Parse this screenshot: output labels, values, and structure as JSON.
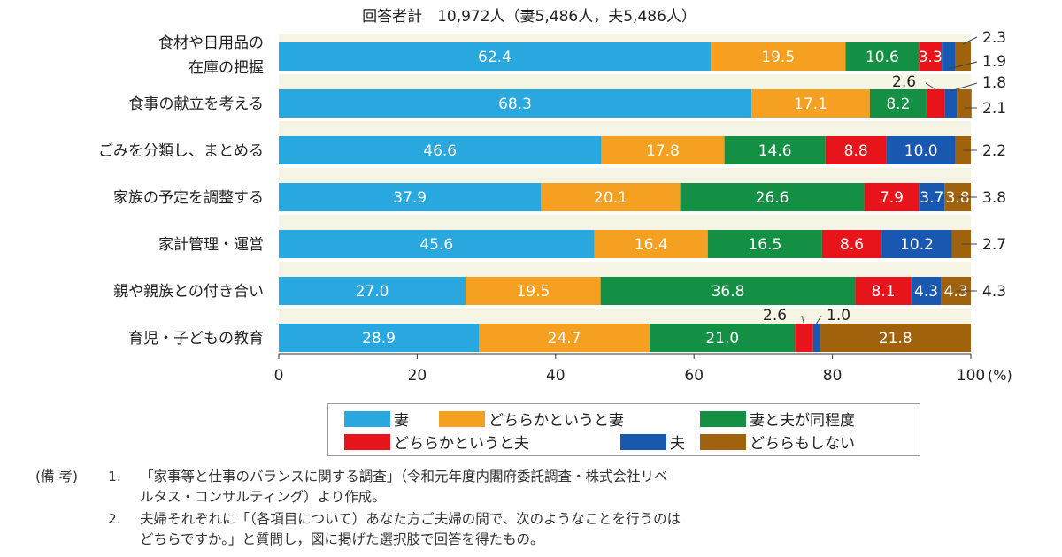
{
  "chart_data": {
    "type": "bar",
    "orientation": "horizontal",
    "stacked": true,
    "subtitle": "回答者計　10,972人（妻5,486人，夫5,486人）",
    "categories": [
      "食材や日用品の\n在庫の把握",
      "食事の献立を考える",
      "ごみを分類し、まとめる",
      "家族の予定を調整する",
      "家計管理・運営",
      "親や親族との付き合い",
      "育児・子どもの教育"
    ],
    "series": [
      {
        "name": "妻",
        "color": "#29a8e0",
        "values": [
          62.4,
          68.3,
          46.6,
          37.9,
          45.6,
          27.0,
          28.9
        ]
      },
      {
        "name": "どちらかというと妻",
        "color": "#f5a021",
        "values": [
          19.5,
          17.1,
          17.8,
          20.1,
          16.4,
          19.5,
          24.7
        ]
      },
      {
        "name": "妻と夫が同程度",
        "color": "#149045",
        "values": [
          10.6,
          8.2,
          14.6,
          26.6,
          16.5,
          36.8,
          21.0
        ]
      },
      {
        "name": "どちらかというと夫",
        "color": "#e8141c",
        "values": [
          3.3,
          2.6,
          8.8,
          7.9,
          8.6,
          8.1,
          2.6
        ]
      },
      {
        "name": "夫",
        "color": "#1858b0",
        "values": [
          1.9,
          1.8,
          10.0,
          3.7,
          10.2,
          4.3,
          1.0
        ]
      },
      {
        "name": "どちらもしない",
        "color": "#a1620e",
        "values": [
          2.3,
          2.1,
          2.2,
          3.8,
          2.7,
          4.3,
          21.8
        ]
      }
    ],
    "labels": [
      [
        "62.4",
        "19.5",
        "10.6",
        "3.3",
        "1.9",
        "2.3"
      ],
      [
        "68.3",
        "17.1",
        "8.2",
        "2.6",
        "1.8",
        "2.1"
      ],
      [
        "46.6",
        "17.8",
        "14.6",
        "8.8",
        "10.0",
        "2.2"
      ],
      [
        "37.9",
        "20.1",
        "26.6",
        "7.9",
        "3.7",
        "3.8"
      ],
      [
        "45.6",
        "16.4",
        "16.5",
        "8.6",
        "10.2",
        "2.7"
      ],
      [
        "27.0",
        "19.5",
        "36.8",
        "8.1",
        "4.3",
        "4.3"
      ],
      [
        "28.9",
        "24.7",
        "21.0",
        "2.6",
        "1.0",
        "21.8"
      ]
    ],
    "xlim": [
      0,
      100
    ],
    "xticks": [
      "0",
      "20",
      "40",
      "60",
      "80",
      "100"
    ],
    "xunit": "(%)",
    "grid": false,
    "legend_position": "bottom"
  },
  "notes": {
    "prefix": "(備 考)",
    "n1": "1.",
    "line1": "「家事等と仕事のバランスに関する調査」（令和元年度内閣府委託調査・株式会社リベ",
    "line1b": "ルタス・コンサルティング）より作成。",
    "n2": "2.",
    "line2": "夫婦それぞれに「（各項目について）あなた方ご夫婦の間で、次のようなことを行うのは",
    "line2b": "どちらですか。」と質問し，図に掲げた選択肢で回答を得たもの。"
  }
}
